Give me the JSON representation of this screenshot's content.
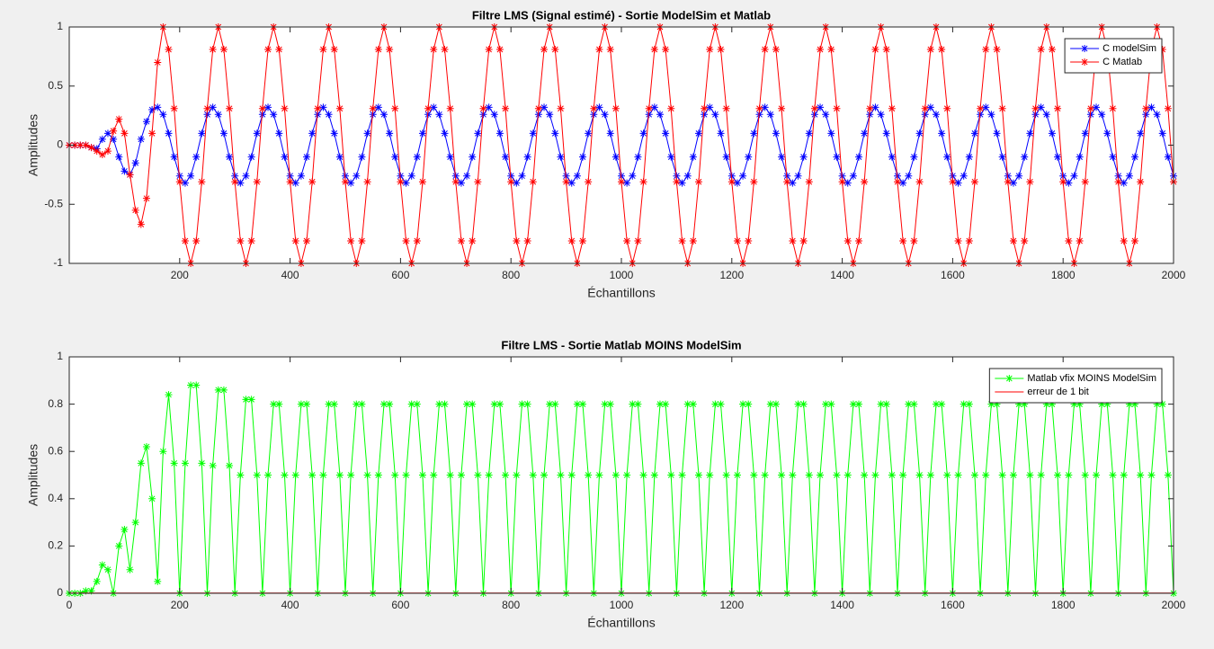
{
  "chart_data": [
    {
      "type": "line",
      "title": "Filtre LMS (Signal estimé) - Sortie ModelSim et Matlab",
      "xlabel": "Échantillons",
      "ylabel": "Amplitudes",
      "x": [
        0,
        10,
        20,
        30,
        40,
        50,
        60,
        70,
        80,
        90,
        100,
        110,
        120,
        130,
        140,
        150,
        160,
        170,
        180,
        190,
        200,
        210,
        220,
        230,
        240,
        250,
        260,
        270,
        280,
        290,
        300,
        310,
        320,
        330,
        340,
        350,
        360,
        370,
        380,
        390,
        400,
        410,
        420,
        430,
        440,
        450,
        460,
        470,
        480,
        490,
        500,
        510,
        520,
        530,
        540,
        550,
        560,
        570,
        580,
        590,
        600,
        610,
        620,
        630,
        640,
        650,
        660,
        670,
        680,
        690,
        700,
        710,
        720,
        730,
        740,
        750,
        760,
        770,
        780,
        790,
        800,
        810,
        820,
        830,
        840,
        850,
        860,
        870,
        880,
        890,
        900,
        910,
        920,
        930,
        940,
        950,
        960,
        970,
        980,
        990,
        1000,
        1010,
        1020,
        1030,
        1040,
        1050,
        1060,
        1070,
        1080,
        1090,
        1100,
        1110,
        1120,
        1130,
        1140,
        1150,
        1160,
        1170,
        1180,
        1190,
        1200,
        1210,
        1220,
        1230,
        1240,
        1250,
        1260,
        1270,
        1280,
        1290,
        1300,
        1310,
        1320,
        1330,
        1340,
        1350,
        1360,
        1370,
        1380,
        1390,
        1400,
        1410,
        1420,
        1430,
        1440,
        1450,
        1460,
        1470,
        1480,
        1490,
        1500,
        1510,
        1520,
        1530,
        1540,
        1550,
        1560,
        1570,
        1580,
        1590,
        1600,
        1610,
        1620,
        1630,
        1640,
        1650,
        1660,
        1670,
        1680,
        1690,
        1700,
        1710,
        1720,
        1730,
        1740,
        1750,
        1760,
        1770,
        1780,
        1790,
        1800,
        1810,
        1820,
        1830,
        1840,
        1850,
        1860,
        1870,
        1880,
        1890,
        1900,
        1910,
        1920,
        1930,
        1940,
        1950,
        1960,
        1970,
        1980,
        1990,
        2000
      ],
      "series": [
        {
          "name": "C modelSim",
          "color": "#0000ff",
          "marker": "*",
          "values": [
            0,
            0,
            0,
            0,
            -0.02,
            -0.03,
            0.05,
            0.1,
            0.05,
            -0.1,
            -0.22,
            -0.25,
            -0.15,
            0.05,
            0.2,
            0.3,
            0.32,
            0.26,
            0.1,
            -0.1,
            -0.26,
            -0.32,
            -0.26,
            -0.1,
            0.1,
            0.26,
            0.32,
            0.26,
            0.1,
            -0.1,
            -0.26,
            -0.32,
            -0.26,
            -0.1,
            0.1,
            0.26,
            0.32,
            0.26,
            0.1,
            -0.1,
            -0.26,
            -0.32,
            -0.26,
            -0.1,
            0.1,
            0.26,
            0.32,
            0.26,
            0.1,
            -0.1,
            -0.26,
            -0.32,
            -0.26,
            -0.1,
            0.1,
            0.26,
            0.32,
            0.26,
            0.1,
            -0.1,
            -0.26,
            -0.32,
            -0.26,
            -0.1,
            0.1,
            0.26,
            0.32,
            0.26,
            0.1,
            -0.1,
            -0.26,
            -0.32,
            -0.26,
            -0.1,
            0.1,
            0.26,
            0.32,
            0.26,
            0.1,
            -0.1,
            -0.26,
            -0.32,
            -0.26,
            -0.1,
            0.1,
            0.26,
            0.32,
            0.26,
            0.1,
            -0.1,
            -0.26,
            -0.32,
            -0.26,
            -0.1,
            0.1,
            0.26,
            0.32,
            0.26,
            0.1,
            -0.1,
            -0.26,
            -0.32,
            -0.26,
            -0.1,
            0.1,
            0.26,
            0.32,
            0.26,
            0.1,
            -0.1,
            -0.26,
            -0.32,
            -0.26,
            -0.1,
            0.1,
            0.26,
            0.32,
            0.26,
            0.1,
            -0.1,
            -0.26,
            -0.32,
            -0.26,
            -0.1,
            0.1,
            0.26,
            0.32,
            0.26,
            0.1,
            -0.1,
            -0.26,
            -0.32,
            -0.26,
            -0.1,
            0.1,
            0.26,
            0.32,
            0.26,
            0.1,
            -0.1,
            -0.26,
            -0.32,
            -0.26,
            -0.1,
            0.1,
            0.26,
            0.32,
            0.26,
            0.1,
            -0.1,
            -0.26,
            -0.32,
            -0.26,
            -0.1,
            0.1,
            0.26,
            0.32,
            0.26,
            0.1,
            -0.1,
            -0.26,
            -0.32,
            -0.26,
            -0.1,
            0.1,
            0.26,
            0.32,
            0.26,
            0.1,
            -0.1,
            -0.26,
            -0.32,
            -0.26,
            -0.1,
            0.1,
            0.26,
            0.32,
            0.26,
            0.1,
            -0.1,
            -0.26,
            -0.32,
            -0.26,
            -0.1,
            0.1,
            0.26,
            0.32,
            0.26,
            0.1,
            -0.1,
            -0.26,
            -0.32,
            -0.26,
            -0.1,
            0.1,
            0.26,
            0.32,
            0.26,
            0.1,
            -0.1,
            -0.26
          ]
        },
        {
          "name": "C Matlab",
          "color": "#ff0000",
          "marker": "*",
          "values": [
            0,
            0,
            0,
            0,
            -0.02,
            -0.05,
            -0.08,
            -0.05,
            0.12,
            0.22,
            0.1,
            -0.25,
            -0.55,
            -0.67,
            -0.45,
            0.1,
            0.7,
            1,
            0.81,
            0.31,
            -0.31,
            -0.81,
            -1,
            -0.81,
            -0.31,
            0.31,
            0.81,
            1,
            0.81,
            0.31,
            -0.31,
            -0.81,
            -1,
            -0.81,
            -0.31,
            0.31,
            0.81,
            1,
            0.81,
            0.31,
            -0.31,
            -0.81,
            -1,
            -0.81,
            -0.31,
            0.31,
            0.81,
            1,
            0.81,
            0.31,
            -0.31,
            -0.81,
            -1,
            -0.81,
            -0.31,
            0.31,
            0.81,
            1,
            0.81,
            0.31,
            -0.31,
            -0.81,
            -1,
            -0.81,
            -0.31,
            0.31,
            0.81,
            1,
            0.81,
            0.31,
            -0.31,
            -0.81,
            -1,
            -0.81,
            -0.31,
            0.31,
            0.81,
            1,
            0.81,
            0.31,
            -0.31,
            -0.81,
            -1,
            -0.81,
            -0.31,
            0.31,
            0.81,
            1,
            0.81,
            0.31,
            -0.31,
            -0.81,
            -1,
            -0.81,
            -0.31,
            0.31,
            0.81,
            1,
            0.81,
            0.31,
            -0.31,
            -0.81,
            -1,
            -0.81,
            -0.31,
            0.31,
            0.81,
            1,
            0.81,
            0.31,
            -0.31,
            -0.81,
            -1,
            -0.81,
            -0.31,
            0.31,
            0.81,
            1,
            0.81,
            0.31,
            -0.31,
            -0.81,
            -1,
            -0.81,
            -0.31,
            0.31,
            0.81,
            1,
            0.81,
            0.31,
            -0.31,
            -0.81,
            -1,
            -0.81,
            -0.31,
            0.31,
            0.81,
            1,
            0.81,
            0.31,
            -0.31,
            -0.81,
            -1,
            -0.81,
            -0.31,
            0.31,
            0.81,
            1,
            0.81,
            0.31,
            -0.31,
            -0.81,
            -1,
            -0.81,
            -0.31,
            0.31,
            0.81,
            1,
            0.81,
            0.31,
            -0.31,
            -0.81,
            -1,
            -0.81,
            -0.31,
            0.31,
            0.81,
            1,
            0.81,
            0.31,
            -0.31,
            -0.81,
            -1,
            -0.81,
            -0.31,
            0.31,
            0.81,
            1,
            0.81,
            0.31,
            -0.31,
            -0.81,
            -1,
            -0.81,
            -0.31,
            0.31,
            0.81,
            1,
            0.81,
            0.31,
            -0.31,
            -0.81,
            -1,
            -0.81,
            -0.31,
            0.31,
            0.81,
            1,
            0.81,
            0.31,
            -0.31
          ]
        }
      ],
      "xlim": [
        0,
        2000
      ],
      "ylim": [
        -1,
        1
      ],
      "xticks": [
        200,
        400,
        600,
        800,
        1000,
        1200,
        1400,
        1600,
        1800,
        2000
      ],
      "yticks": [
        -1,
        -0.5,
        0,
        0.5,
        1
      ],
      "legend": "upper right"
    },
    {
      "type": "line",
      "title": "Filtre LMS - Sortie Matlab MOINS ModelSim",
      "xlabel": "Échantillons",
      "ylabel": "Amplitudes",
      "x": [
        0,
        10,
        20,
        30,
        40,
        50,
        60,
        70,
        80,
        90,
        100,
        110,
        120,
        130,
        140,
        150,
        160,
        170,
        180,
        190,
        200,
        210,
        220,
        230,
        240,
        250,
        260,
        270,
        280,
        290,
        300,
        310,
        320,
        330,
        340,
        350,
        360,
        370,
        380,
        390,
        400,
        410,
        420,
        430,
        440,
        450,
        460,
        470,
        480,
        490,
        500,
        510,
        520,
        530,
        540,
        550,
        560,
        570,
        580,
        590,
        600,
        610,
        620,
        630,
        640,
        650,
        660,
        670,
        680,
        690,
        700,
        710,
        720,
        730,
        740,
        750,
        760,
        770,
        780,
        790,
        800,
        810,
        820,
        830,
        840,
        850,
        860,
        870,
        880,
        890,
        900,
        910,
        920,
        930,
        940,
        950,
        960,
        970,
        980,
        990,
        1000,
        1010,
        1020,
        1030,
        1040,
        1050,
        1060,
        1070,
        1080,
        1090,
        1100,
        1110,
        1120,
        1130,
        1140,
        1150,
        1160,
        1170,
        1180,
        1190,
        1200,
        1210,
        1220,
        1230,
        1240,
        1250,
        1260,
        1270,
        1280,
        1290,
        1300,
        1310,
        1320,
        1330,
        1340,
        1350,
        1360,
        1370,
        1380,
        1390,
        1400,
        1410,
        1420,
        1430,
        1440,
        1450,
        1460,
        1470,
        1480,
        1490,
        1500,
        1510,
        1520,
        1530,
        1540,
        1550,
        1560,
        1570,
        1580,
        1590,
        1600,
        1610,
        1620,
        1630,
        1640,
        1650,
        1660,
        1670,
        1680,
        1690,
        1700,
        1710,
        1720,
        1730,
        1740,
        1750,
        1760,
        1770,
        1780,
        1790,
        1800,
        1810,
        1820,
        1830,
        1840,
        1850,
        1860,
        1870,
        1880,
        1890,
        1900,
        1910,
        1920,
        1930,
        1940,
        1950,
        1960,
        1970,
        1980,
        1990,
        2000
      ],
      "series": [
        {
          "name": "Matlab vfix MOINS ModelSim",
          "color": "#00ff00",
          "marker": "*",
          "values": [
            0,
            0,
            0,
            0.01,
            0.01,
            0.05,
            0.12,
            0.1,
            0,
            0.2,
            0.27,
            0.1,
            0.3,
            0.55,
            0.62,
            0.4,
            0.05,
            0.6,
            0.84,
            0.55,
            0,
            0.55,
            0.88,
            0.88,
            0.55,
            0,
            0.54,
            0.86,
            0.86,
            0.54,
            0,
            0.5,
            0.82,
            0.82,
            0.5,
            0,
            0.5,
            0.8,
            0.8,
            0.5,
            0,
            0.5,
            0.8,
            0.8,
            0.5,
            0,
            0.5,
            0.8,
            0.8,
            0.5,
            0,
            0.5,
            0.8,
            0.8,
            0.5,
            0,
            0.5,
            0.8,
            0.8,
            0.5,
            0,
            0.5,
            0.8,
            0.8,
            0.5,
            0,
            0.5,
            0.8,
            0.8,
            0.5,
            0,
            0.5,
            0.8,
            0.8,
            0.5,
            0,
            0.5,
            0.8,
            0.8,
            0.5,
            0,
            0.5,
            0.8,
            0.8,
            0.5,
            0,
            0.5,
            0.8,
            0.8,
            0.5,
            0,
            0.5,
            0.8,
            0.8,
            0.5,
            0,
            0.5,
            0.8,
            0.8,
            0.5,
            0,
            0.5,
            0.8,
            0.8,
            0.5,
            0,
            0.5,
            0.8,
            0.8,
            0.5,
            0,
            0.5,
            0.8,
            0.8,
            0.5,
            0,
            0.5,
            0.8,
            0.8,
            0.5,
            0,
            0.5,
            0.8,
            0.8,
            0.5,
            0,
            0.5,
            0.8,
            0.8,
            0.5,
            0,
            0.5,
            0.8,
            0.8,
            0.5,
            0,
            0.5,
            0.8,
            0.8,
            0.5,
            0,
            0.5,
            0.8,
            0.8,
            0.5,
            0,
            0.5,
            0.8,
            0.8,
            0.5,
            0,
            0.5,
            0.8,
            0.8,
            0.5,
            0,
            0.5,
            0.8,
            0.8,
            0.5,
            0,
            0.5,
            0.8,
            0.8,
            0.5,
            0,
            0.5,
            0.8,
            0.8,
            0.5,
            0,
            0.5,
            0.8,
            0.8,
            0.5,
            0,
            0.5,
            0.8,
            0.8,
            0.5,
            0,
            0.5,
            0.8,
            0.8,
            0.5,
            0,
            0.5,
            0.8,
            0.8,
            0.5,
            0,
            0.5,
            0.8,
            0.8,
            0.5,
            0,
            0.5,
            0.8,
            0.8,
            0.5,
            0
          ]
        },
        {
          "name": "erreur de 1 bit",
          "color": "#ff0000",
          "x": [
            0,
            2000
          ],
          "values": [
            0.001,
            0.001
          ]
        }
      ],
      "xlim": [
        0,
        2000
      ],
      "ylim": [
        0,
        1
      ],
      "xticks": [
        0,
        200,
        400,
        600,
        800,
        1000,
        1200,
        1400,
        1600,
        1800,
        2000
      ],
      "yticks": [
        0,
        0.2,
        0.4,
        0.6,
        0.8,
        1
      ],
      "legend": "upper right"
    }
  ]
}
